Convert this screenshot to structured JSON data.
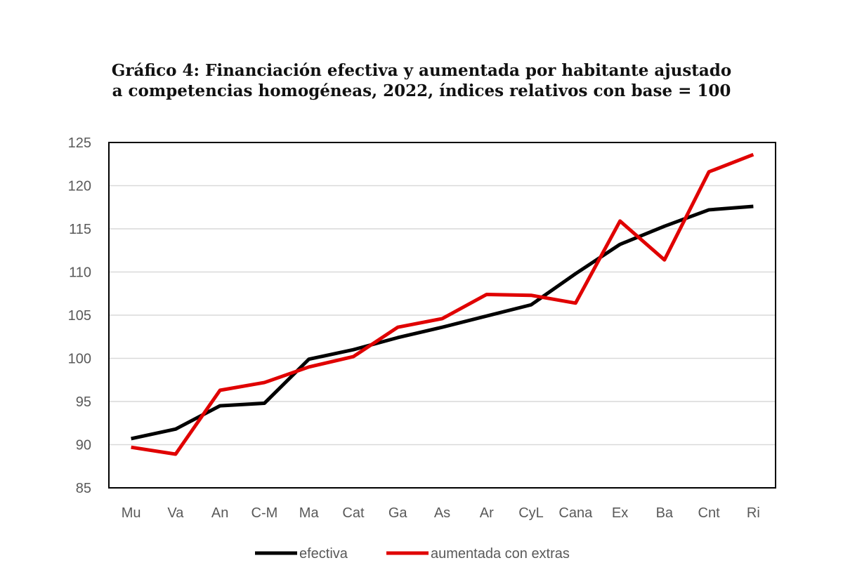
{
  "chart_data": {
    "type": "line",
    "title_line1": "Gráfico 4: Financiación efectiva y aumentada por habitante ajustado",
    "title_line2": "a competencias homogéneas, 2022, índices relativos con base = 100",
    "xlabel": "",
    "ylabel": "",
    "categories": [
      "Mu",
      "Va",
      "An",
      "C-M",
      "Ma",
      "Cat",
      "Ga",
      "As",
      "Ar",
      "CyL",
      "Cana",
      "Ex",
      "Ba",
      "Cnt",
      "Ri"
    ],
    "ylim": [
      85,
      125
    ],
    "yticks": [
      85,
      90,
      95,
      100,
      105,
      110,
      115,
      120,
      125
    ],
    "grid": true,
    "legend_position": "bottom",
    "series": [
      {
        "name": "efectiva",
        "color": "#000000",
        "values": [
          90.7,
          91.8,
          94.5,
          94.8,
          99.9,
          101.0,
          102.4,
          103.6,
          104.9,
          106.2,
          109.8,
          113.2,
          115.3,
          117.2,
          117.6
        ]
      },
      {
        "name": "aumentada con extras",
        "color": "#e00000",
        "values": [
          89.7,
          88.9,
          96.3,
          97.2,
          99.0,
          100.2,
          103.6,
          104.6,
          107.4,
          107.3,
          106.4,
          115.9,
          111.4,
          121.6,
          123.6
        ]
      }
    ]
  }
}
